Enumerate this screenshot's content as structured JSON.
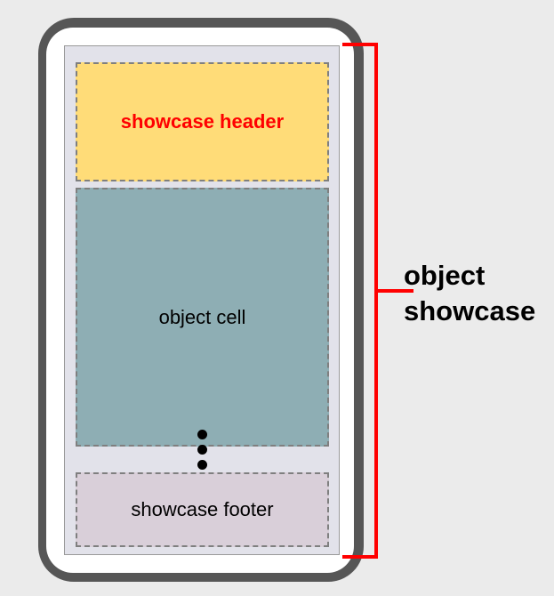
{
  "diagram": {
    "header_label": "showcase header",
    "cell_label": "object cell",
    "footer_label": "showcase footer",
    "bracket_label_line1": "object",
    "bracket_label_line2": "showcase"
  },
  "colors": {
    "background": "#ebebeb",
    "phone_frame": "#565656",
    "screen": "#e2e2ea",
    "header_fill": "#ffdc78",
    "header_text": "#ff0000",
    "cell_fill": "#8eaeb4",
    "footer_fill": "#d9cfd9",
    "bracket": "#ff0000",
    "dashed_border": "#7f7f7f"
  }
}
